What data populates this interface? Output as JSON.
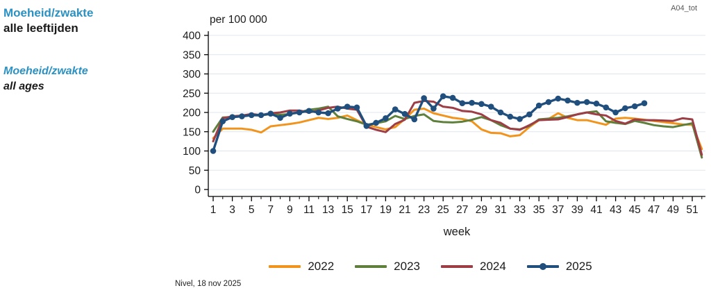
{
  "header": {
    "title_nl": "Moeheid/zwakte",
    "subtitle_nl": "alle leeftijden",
    "title_en": "Moeheid/zwakte",
    "subtitle_en": "all ages",
    "code": "A04_tot",
    "accent_color": "#2b91c2"
  },
  "footer": {
    "source": "Nivel, 18 nov 2025"
  },
  "chart_data": {
    "type": "line",
    "y_axis_title": "per 100 000",
    "xlabel": "week",
    "ylim": [
      0,
      400
    ],
    "y_ticks": [
      0,
      50,
      100,
      150,
      200,
      250,
      300,
      350,
      400
    ],
    "x_tick_labels": [
      1,
      3,
      5,
      7,
      9,
      11,
      13,
      15,
      17,
      19,
      21,
      23,
      25,
      27,
      29,
      31,
      33,
      35,
      37,
      39,
      41,
      43,
      45,
      47,
      49,
      51
    ],
    "x_minor_ticks": [
      2,
      4,
      6,
      8,
      10,
      12,
      14,
      16,
      18,
      20,
      22,
      24,
      26,
      28,
      30,
      32,
      34,
      36,
      38,
      40,
      42,
      44,
      46,
      48,
      50,
      52
    ],
    "x_range": [
      1,
      52
    ],
    "grid": true,
    "grid_color": "#dfe5ee",
    "axis_color": "#000000",
    "legend_position": "bottom",
    "series": [
      {
        "name": "2022",
        "color": "#f0941e",
        "marker": false,
        "values": [
          133,
          158,
          158,
          158,
          155,
          148,
          164,
          167,
          170,
          174,
          180,
          186,
          183,
          186,
          192,
          180,
          168,
          162,
          156,
          162,
          183,
          207,
          210,
          198,
          192,
          186,
          183,
          177,
          156,
          147,
          146,
          138,
          141,
          162,
          180,
          183,
          198,
          186,
          180,
          180,
          174,
          168,
          184,
          186,
          184,
          181,
          178,
          175,
          172,
          169,
          168,
          105
        ]
      },
      {
        "name": "2023",
        "color": "#5f7f3d",
        "marker": false,
        "values": [
          150,
          187,
          188,
          190,
          193,
          192,
          196,
          194,
          196,
          200,
          207,
          210,
          215,
          190,
          183,
          177,
          168,
          172,
          177,
          191,
          183,
          191,
          195,
          178,
          175,
          174,
          176,
          181,
          188,
          180,
          167,
          158,
          156,
          165,
          182,
          184,
          186,
          190,
          195,
          200,
          203,
          177,
          173,
          170,
          178,
          173,
          167,
          164,
          162,
          167,
          172,
          83
        ]
      },
      {
        "name": "2024",
        "color": "#9d3d45",
        "marker": false,
        "values": [
          125,
          185,
          190,
          192,
          196,
          193,
          198,
          200,
          205,
          205,
          200,
          205,
          212,
          215,
          210,
          207,
          163,
          155,
          149,
          170,
          181,
          225,
          230,
          228,
          215,
          212,
          204,
          202,
          195,
          180,
          173,
          158,
          155,
          167,
          180,
          181,
          182,
          188,
          195,
          200,
          195,
          192,
          178,
          171,
          182,
          180,
          180,
          179,
          178,
          185,
          182,
          90
        ]
      },
      {
        "name": "2025",
        "color": "#204f7d",
        "marker": true,
        "values": [
          100,
          177,
          188,
          190,
          193,
          193,
          197,
          186,
          197,
          200,
          204,
          200,
          198,
          210,
          215,
          213,
          165,
          173,
          185,
          208,
          196,
          182,
          237,
          210,
          242,
          238,
          224,
          225,
          222,
          215,
          200,
          189,
          183,
          195,
          218,
          227,
          236,
          231,
          225,
          227,
          223,
          213,
          200,
          211,
          216,
          224,
          null,
          null,
          null,
          null,
          null,
          null
        ]
      }
    ]
  }
}
